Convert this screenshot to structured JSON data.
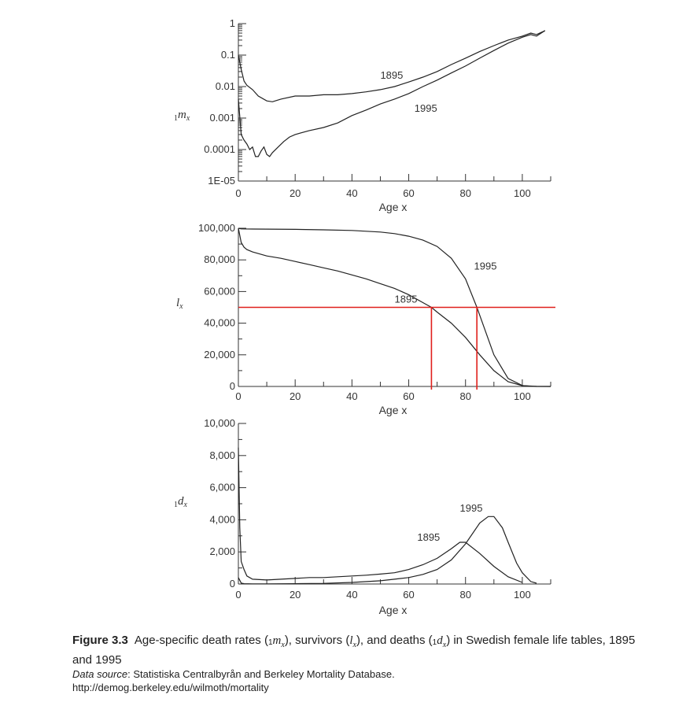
{
  "chart_data": [
    {
      "type": "line",
      "y_scale": "log",
      "ylabel": "1mx",
      "ylabel_main": "m",
      "ylabel_pre": "1",
      "ylabel_sub": "x",
      "xlabel": "Age x",
      "xlim": [
        0,
        110
      ],
      "ylim": [
        1e-05,
        1
      ],
      "x_ticks": [
        "0",
        "20",
        "40",
        "60",
        "80",
        "100"
      ],
      "y_ticks": [
        "1E-05",
        "0.0001",
        "0.001",
        "0.01",
        "0.1",
        "1"
      ],
      "series": [
        {
          "name": "1895",
          "x": [
            0,
            1,
            2,
            3,
            5,
            7,
            10,
            12,
            15,
            20,
            25,
            30,
            35,
            40,
            45,
            50,
            55,
            60,
            65,
            70,
            75,
            80,
            85,
            90,
            95,
            100,
            103,
            105,
            108
          ],
          "y": [
            0.1,
            0.035,
            0.015,
            0.011,
            0.008,
            0.005,
            0.0035,
            0.0033,
            0.004,
            0.005,
            0.005,
            0.0055,
            0.0055,
            0.006,
            0.0068,
            0.008,
            0.01,
            0.014,
            0.02,
            0.03,
            0.05,
            0.08,
            0.13,
            0.2,
            0.3,
            0.4,
            0.5,
            0.45,
            0.6
          ]
        },
        {
          "name": "1995",
          "x": [
            0,
            1,
            2,
            3,
            4,
            5,
            6,
            7,
            8,
            9,
            10,
            11,
            12,
            14,
            16,
            18,
            20,
            25,
            30,
            35,
            40,
            45,
            50,
            55,
            60,
            65,
            70,
            75,
            80,
            85,
            90,
            95,
            100,
            103,
            105,
            108
          ],
          "y": [
            0.004,
            0.0003,
            0.0002,
            0.00015,
            0.0001,
            0.00012,
            6e-05,
            6e-05,
            9e-05,
            0.00012,
            7e-05,
            6e-05,
            8e-05,
            0.00012,
            0.00018,
            0.00025,
            0.0003,
            0.0004,
            0.0005,
            0.0007,
            0.0012,
            0.0018,
            0.0028,
            0.004,
            0.006,
            0.01,
            0.016,
            0.027,
            0.045,
            0.08,
            0.14,
            0.24,
            0.37,
            0.45,
            0.4,
            0.6
          ]
        }
      ],
      "annotations": [
        {
          "text": "1895",
          "x": 50,
          "y": 0.018
        },
        {
          "text": "1995",
          "x": 62,
          "y": 0.0016
        }
      ]
    },
    {
      "type": "line",
      "ylabel": "lx",
      "ylabel_main": "l",
      "ylabel_sub": "x",
      "xlabel": "Age x",
      "xlim": [
        0,
        110
      ],
      "ylim": [
        0,
        100000
      ],
      "x_ticks": [
        "0",
        "20",
        "40",
        "60",
        "80",
        "100"
      ],
      "y_ticks": [
        "0",
        "20,000",
        "40,000",
        "60,000",
        "80,000",
        "100,000"
      ],
      "series": [
        {
          "name": "1895",
          "x": [
            0,
            1,
            2,
            3,
            5,
            10,
            15,
            20,
            25,
            30,
            35,
            40,
            45,
            50,
            55,
            60,
            65,
            68,
            70,
            75,
            80,
            85,
            90,
            95,
            100,
            105,
            110
          ],
          "y": [
            100000,
            91000,
            88000,
            86500,
            85000,
            82500,
            81000,
            79000,
            77000,
            75000,
            73000,
            70500,
            68000,
            65000,
            62000,
            58000,
            53000,
            50000,
            47000,
            40000,
            31000,
            20000,
            10000,
            3000,
            500,
            50,
            0
          ]
        },
        {
          "name": "1995",
          "x": [
            0,
            1,
            5,
            10,
            20,
            30,
            40,
            50,
            55,
            60,
            65,
            70,
            75,
            80,
            84,
            85,
            88,
            90,
            95,
            100,
            103,
            105,
            110
          ],
          "y": [
            100000,
            99600,
            99500,
            99450,
            99300,
            99000,
            98600,
            97600,
            96600,
            95000,
            92500,
            88500,
            81000,
            68000,
            50000,
            45000,
            30000,
            20000,
            5000,
            600,
            100,
            10,
            0
          ]
        }
      ],
      "reference_lines": {
        "horizontal_y": 50000,
        "vertical_x": [
          68,
          84
        ]
      },
      "annotations": [
        {
          "text": "1895",
          "x": 55,
          "y": 53000
        },
        {
          "text": "1995",
          "x": 83,
          "y": 74000
        }
      ]
    },
    {
      "type": "line",
      "ylabel": "1dx",
      "ylabel_main": "d",
      "ylabel_pre": "1",
      "ylabel_sub": "x",
      "xlabel": "Age x",
      "xlim": [
        0,
        110
      ],
      "ylim": [
        0,
        10000
      ],
      "x_ticks": [
        "0",
        "20",
        "40",
        "60",
        "80",
        "100"
      ],
      "y_ticks": [
        "0",
        "2,000",
        "4,000",
        "6,000",
        "8,000",
        "10,000"
      ],
      "series": [
        {
          "name": "1895",
          "x": [
            0,
            0.5,
            1,
            2,
            3,
            5,
            10,
            15,
            20,
            25,
            30,
            35,
            40,
            45,
            50,
            55,
            60,
            65,
            70,
            75,
            78,
            80,
            85,
            90,
            95,
            100
          ],
          "y": [
            8500,
            3500,
            1400,
            900,
            500,
            300,
            250,
            300,
            350,
            400,
            400,
            450,
            500,
            550,
            620,
            700,
            900,
            1200,
            1600,
            2200,
            2600,
            2600,
            1900,
            1100,
            450,
            100
          ]
        },
        {
          "name": "1995",
          "x": [
            0,
            1,
            2,
            5,
            10,
            20,
            30,
            40,
            50,
            55,
            60,
            65,
            70,
            75,
            80,
            85,
            88,
            90,
            93,
            95,
            98,
            100,
            103,
            105
          ],
          "y": [
            400,
            60,
            20,
            10,
            10,
            20,
            40,
            100,
            200,
            300,
            400,
            600,
            900,
            1500,
            2500,
            3800,
            4200,
            4200,
            3500,
            2600,
            1300,
            700,
            150,
            50
          ]
        }
      ],
      "annotations": [
        {
          "text": "1995",
          "x": 78,
          "y": 4500
        },
        {
          "text": "1895",
          "x": 63,
          "y": 2700
        }
      ]
    }
  ],
  "caption": {
    "figure_number": "Figure 3.3",
    "title_part1": "Age-specific death rates (",
    "mx_main": "m",
    "mx_pre": "1",
    "mx_sub": "x",
    "title_part2": "), survivors (",
    "lx_main": "l",
    "lx_sub": "x",
    "title_part3": "), and deaths (",
    "dx_main": "d",
    "dx_pre": "1",
    "dx_sub": "x",
    "title_part4": ") in Swedish female life tables, 1895 and 1995",
    "source_label": "Data source",
    "source_text": ": Statistiska Centralbyrån and Berkeley Mortality Database.",
    "url": "http://demog.berkeley.edu/wilmoth/mortality"
  }
}
